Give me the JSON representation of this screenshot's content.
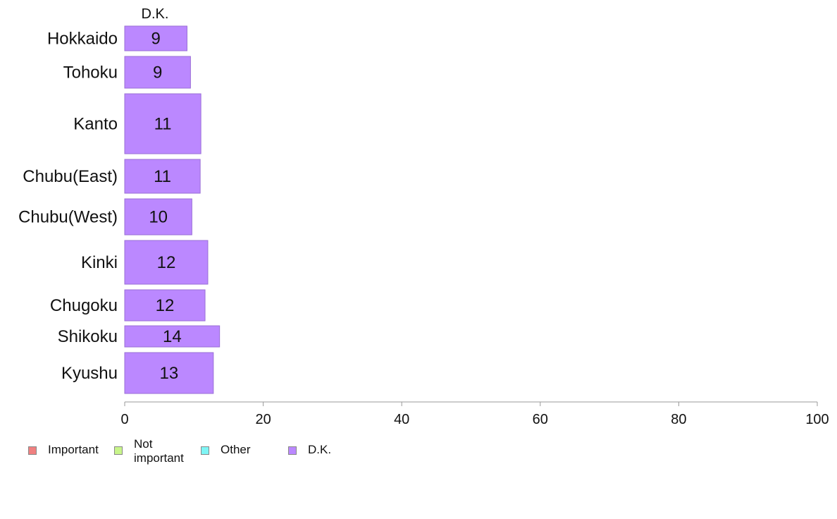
{
  "chart_data": {
    "type": "bar",
    "orientation": "horizontal",
    "stacked": true,
    "column_header": "D.K.",
    "categories": [
      "Hokkaido",
      "Tohoku",
      "Kanto",
      "Chubu(East)",
      "Chubu(West)",
      "Kinki",
      "Chugoku",
      "Shikoku",
      "Kyushu"
    ],
    "series": [
      {
        "name": "Important",
        "color": "#f08080",
        "values": [
          0,
          0,
          0,
          0,
          0,
          0,
          0,
          0,
          0
        ]
      },
      {
        "name": "Not important",
        "color": "#c8f58a",
        "values": [
          0,
          0,
          0,
          0,
          0,
          0,
          0,
          0,
          0
        ]
      },
      {
        "name": "Other",
        "color": "#7ff5f5",
        "values": [
          0,
          0,
          0,
          0,
          0,
          0,
          0,
          0,
          0
        ]
      },
      {
        "name": "D.K.",
        "color": "#bb88ff",
        "values": [
          9,
          9.5,
          11,
          10.9,
          9.7,
          12,
          11.6,
          13.7,
          12.8
        ]
      }
    ],
    "data_labels": [
      "9",
      "9",
      "11",
      "11",
      "10",
      "12",
      "12",
      "14",
      "13"
    ],
    "xlim": [
      0,
      100
    ],
    "x_ticks": [
      "0",
      "20",
      "40",
      "60",
      "80",
      "100"
    ],
    "xlabel": "",
    "ylabel": "",
    "grid": false,
    "legend_position": "bottom-left"
  },
  "legend": {
    "items": [
      {
        "label": "Important",
        "color": "#f08080"
      },
      {
        "label": "Not important",
        "color": "#c8f58a"
      },
      {
        "label": "Other",
        "color": "#7ff5f5"
      },
      {
        "label": "D.K.",
        "color": "#bb88ff"
      }
    ]
  }
}
